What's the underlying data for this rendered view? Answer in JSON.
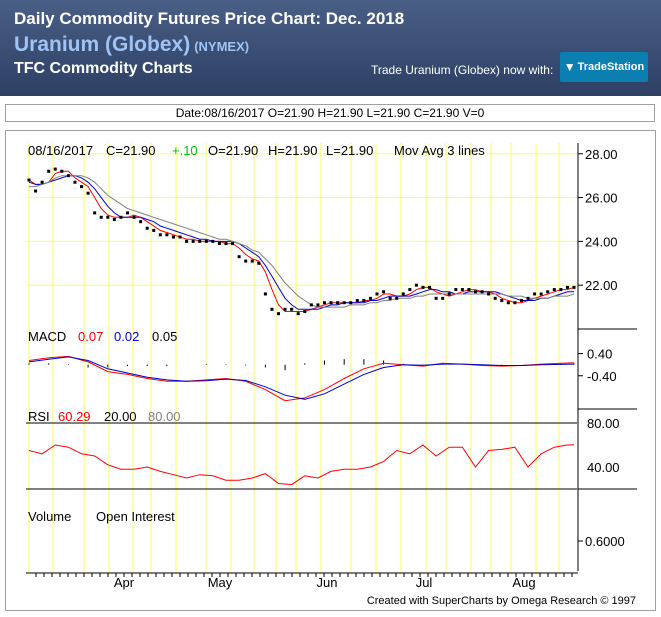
{
  "header": {
    "title": "Daily Commodity Futures Price Chart: Dec. 2018",
    "name": "Uranium (Globex)",
    "exchange": "(NYMEX)",
    "subtitle": "TFC Commodity Charts",
    "trade_text": "Trade Uranium (Globex) now with:",
    "logo_text": "TradeStation"
  },
  "datebar": {
    "text": "Date:08/16/2017 O=21.90 H=21.90 L=21.90 C=21.90 V=0"
  },
  "colors": {
    "header_bg": "#2d3f63",
    "grid": "#ffff55",
    "ma_red": "#ff0000",
    "ma_blue": "#0000cc",
    "ma_gray": "#808080",
    "change_green": "#00cc00"
  },
  "chart_data": [
    {
      "type": "line",
      "panel": "price",
      "readout": {
        "date": "08/16/2017",
        "close": "C=21.90",
        "change": "+.10",
        "open": "O=21.90",
        "high": "H=21.90",
        "low": "L=21.90",
        "study": "Mov Avg 3 lines"
      },
      "y_ticks": [
        "28.00",
        "26.00",
        "24.00",
        "22.00"
      ],
      "ylim": [
        20.0,
        28.4
      ],
      "x_labels": [
        "Apr",
        "May",
        "Jun",
        "Jul",
        "Aug"
      ],
      "x": [
        0,
        2,
        4,
        6,
        8,
        10,
        12,
        14,
        16,
        18,
        20,
        22,
        24,
        26,
        28,
        30,
        32,
        34,
        36,
        38,
        40,
        42,
        44,
        46,
        48,
        50,
        52,
        54,
        56,
        58,
        60,
        62,
        64,
        66,
        68,
        70,
        72,
        74,
        76,
        78,
        80,
        82,
        84,
        86,
        88,
        90,
        92,
        94,
        96,
        98,
        100,
        102,
        104,
        106,
        108,
        110,
        112,
        114,
        116,
        118,
        120,
        122,
        124,
        126,
        128,
        130,
        132,
        134,
        136,
        138,
        140,
        142,
        144,
        146,
        148,
        150,
        152,
        154,
        156,
        158,
        160,
        162,
        164,
        166
      ],
      "close": [
        26.8,
        26.3,
        26.7,
        27.2,
        27.3,
        27.2,
        27.0,
        26.7,
        26.5,
        26.2,
        25.3,
        25.1,
        25.1,
        25.0,
        25.1,
        25.3,
        25.1,
        24.9,
        24.6,
        24.5,
        24.3,
        24.3,
        24.2,
        24.2,
        24.0,
        24.0,
        24.0,
        24.0,
        24.0,
        23.9,
        23.9,
        23.9,
        23.3,
        23.1,
        23.1,
        23.0,
        21.6,
        20.9,
        20.7,
        20.9,
        20.9,
        20.7,
        20.8,
        21.1,
        21.1,
        21.2,
        21.2,
        21.2,
        21.2,
        21.2,
        21.3,
        21.3,
        21.4,
        21.6,
        21.7,
        21.4,
        21.4,
        21.6,
        21.8,
        22.0,
        21.9,
        21.9,
        21.4,
        21.4,
        21.6,
        21.8,
        21.8,
        21.8,
        21.7,
        21.7,
        21.6,
        21.4,
        21.3,
        21.2,
        21.2,
        21.3,
        21.4,
        21.6,
        21.6,
        21.7,
        21.8,
        21.8,
        21.9,
        21.9
      ],
      "series": [
        {
          "values": [
            26.8,
            26.6,
            26.6,
            26.7,
            27.1,
            27.2,
            27.2,
            26.9,
            26.7,
            26.5,
            26.0,
            25.5,
            25.2,
            25.1,
            25.1,
            25.1,
            25.2,
            25.1,
            24.9,
            24.7,
            24.5,
            24.4,
            24.3,
            24.2,
            24.1,
            24.1,
            24.0,
            24.0,
            24.0,
            24.0,
            23.9,
            23.9,
            23.7,
            23.4,
            23.2,
            23.1,
            22.6,
            21.8,
            21.1,
            20.8,
            20.8,
            20.8,
            20.8,
            20.9,
            21.0,
            21.1,
            21.2,
            21.2,
            21.2,
            21.2,
            21.2,
            21.3,
            21.3,
            21.4,
            21.6,
            21.6,
            21.5,
            21.5,
            21.6,
            21.8,
            21.9,
            21.9,
            21.7,
            21.6,
            21.5,
            21.6,
            21.7,
            21.8,
            21.8,
            21.7,
            21.7,
            21.6,
            21.4,
            21.3,
            21.2,
            21.2,
            21.3,
            21.4,
            21.5,
            21.6,
            21.7,
            21.8,
            21.8,
            21.9
          ]
        },
        {
          "values": [
            26.7,
            26.6,
            26.6,
            26.7,
            26.8,
            26.9,
            27.0,
            27.0,
            26.9,
            26.7,
            26.4,
            26.0,
            25.6,
            25.3,
            25.1,
            25.1,
            25.1,
            25.1,
            25.0,
            24.9,
            24.7,
            24.6,
            24.5,
            24.4,
            24.3,
            24.2,
            24.1,
            24.1,
            24.0,
            24.0,
            24.0,
            24.0,
            23.9,
            23.7,
            23.5,
            23.3,
            22.9,
            22.4,
            21.9,
            21.4,
            21.1,
            20.9,
            20.9,
            20.9,
            20.9,
            21.0,
            21.1,
            21.1,
            21.2,
            21.2,
            21.2,
            21.2,
            21.3,
            21.3,
            21.4,
            21.5,
            21.5,
            21.5,
            21.5,
            21.6,
            21.7,
            21.8,
            21.8,
            21.7,
            21.7,
            21.6,
            21.6,
            21.7,
            21.7,
            21.7,
            21.7,
            21.7,
            21.6,
            21.5,
            21.4,
            21.3,
            21.3,
            21.3,
            21.4,
            21.4,
            21.5,
            21.6,
            21.7,
            21.7
          ]
        },
        {
          "values": [
            26.5,
            26.5,
            26.6,
            26.7,
            26.9,
            27.0,
            27.0,
            27.0,
            27.0,
            26.9,
            26.7,
            26.4,
            26.1,
            25.9,
            25.7,
            25.5,
            25.4,
            25.3,
            25.2,
            25.1,
            25.0,
            24.9,
            24.8,
            24.7,
            24.6,
            24.5,
            24.4,
            24.3,
            24.2,
            24.1,
            24.1,
            24.0,
            23.9,
            23.8,
            23.6,
            23.5,
            23.2,
            22.9,
            22.5,
            22.1,
            21.8,
            21.5,
            21.3,
            21.1,
            21.0,
            21.0,
            21.0,
            21.0,
            21.0,
            21.1,
            21.1,
            21.1,
            21.2,
            21.2,
            21.3,
            21.3,
            21.4,
            21.4,
            21.4,
            21.5,
            21.5,
            21.6,
            21.6,
            21.6,
            21.6,
            21.6,
            21.6,
            21.6,
            21.6,
            21.6,
            21.6,
            21.6,
            21.6,
            21.5,
            21.5,
            21.5,
            21.4,
            21.4,
            21.4,
            21.4,
            21.5,
            21.5,
            21.5,
            21.6
          ]
        }
      ]
    },
    {
      "type": "line",
      "panel": "macd",
      "label": "MACD",
      "readout": [
        "0.07",
        "0.02",
        "0.05"
      ],
      "y_ticks": [
        "0.40",
        "-0.40"
      ],
      "ylim": [
        -1.6,
        1.0
      ],
      "x": [
        0,
        6,
        12,
        18,
        24,
        30,
        36,
        42,
        48,
        54,
        60,
        66,
        72,
        78,
        84,
        90,
        96,
        102,
        108,
        114,
        120,
        126,
        132,
        138,
        144,
        150,
        156,
        162,
        166
      ],
      "series": [
        {
          "values": [
            0.15,
            0.25,
            0.3,
            0.1,
            -0.25,
            -0.35,
            -0.5,
            -0.6,
            -0.6,
            -0.55,
            -0.5,
            -0.6,
            -0.9,
            -1.3,
            -1.2,
            -0.9,
            -0.5,
            -0.15,
            0.05,
            0.0,
            -0.05,
            0.05,
            0.02,
            -0.03,
            -0.05,
            -0.03,
            0.02,
            0.05,
            0.07
          ]
        },
        {
          "values": [
            0.1,
            0.2,
            0.28,
            0.15,
            -0.15,
            -0.3,
            -0.45,
            -0.55,
            -0.6,
            -0.58,
            -0.52,
            -0.57,
            -0.8,
            -1.1,
            -1.25,
            -1.05,
            -0.7,
            -0.35,
            -0.1,
            0.0,
            -0.02,
            0.02,
            0.02,
            0.0,
            -0.03,
            -0.03,
            0.0,
            0.01,
            0.02
          ]
        }
      ],
      "histogram": [
        0.05,
        0.05,
        0.02,
        -0.1,
        -0.1,
        -0.05,
        -0.05,
        -0.05,
        0.0,
        0.03,
        0.02,
        -0.03,
        -0.1,
        -0.2,
        0.05,
        0.15,
        0.2,
        0.2,
        0.15,
        0.03,
        -0.03,
        0.03,
        0.0,
        -0.03,
        -0.02,
        0.0,
        0.02,
        0.04,
        0.05
      ]
    },
    {
      "type": "line",
      "panel": "rsi",
      "label": "RSI",
      "readout": [
        "60.29",
        "20.00",
        "80.00"
      ],
      "y_ticks": [
        "80.00",
        "40.00"
      ],
      "ylim": [
        20,
        80
      ],
      "x": [
        0,
        4,
        8,
        12,
        16,
        20,
        24,
        28,
        32,
        36,
        40,
        44,
        48,
        52,
        56,
        60,
        64,
        68,
        72,
        76,
        80,
        84,
        88,
        92,
        96,
        100,
        104,
        108,
        112,
        116,
        120,
        124,
        128,
        132,
        136,
        140,
        144,
        148,
        152,
        156,
        160,
        164,
        166
      ],
      "values": [
        55,
        52,
        60,
        58,
        52,
        50,
        42,
        38,
        38,
        40,
        36,
        33,
        30,
        33,
        32,
        28,
        28,
        30,
        34,
        25,
        24,
        32,
        30,
        36,
        38,
        38,
        40,
        45,
        55,
        52,
        60,
        50,
        58,
        58,
        40,
        55,
        56,
        58,
        40,
        52,
        58,
        60,
        60.29
      ]
    },
    {
      "type": "bar",
      "panel": "volume",
      "labels": [
        "Volume",
        "Open Interest"
      ],
      "y_ticks": [
        "0.6000"
      ]
    }
  ],
  "footer": {
    "credit": "Created with SuperCharts by Omega Research © 1997"
  }
}
